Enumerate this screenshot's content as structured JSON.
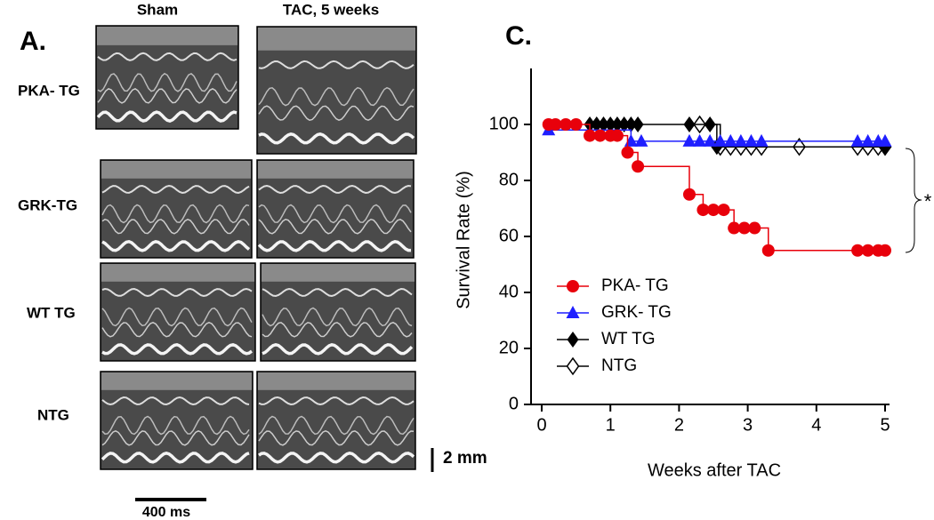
{
  "panel_a": {
    "label": "A.",
    "columns": [
      "Sham",
      "TAC, 5 weeks"
    ],
    "rows": [
      "PKA- TG",
      "GRK-TG",
      "WT TG",
      "NTG"
    ],
    "time_scale": "400 ms",
    "distance_scale": "2 mm"
  },
  "chart_data": {
    "type": "survival",
    "panel_label": "C.",
    "x_label": "Weeks after TAC",
    "y_label": "Survival Rate (%)",
    "annotation": "*",
    "xlim": [
      0,
      5
    ],
    "xticks": [
      0,
      1,
      2,
      3,
      4,
      5
    ],
    "ylim": [
      0,
      120
    ],
    "yticks": [
      0,
      20,
      40,
      60,
      80,
      100
    ],
    "series": [
      {
        "name": "PKA- TG",
        "color": "#e8000b",
        "marker": "circle",
        "x": [
          0.1,
          0.2,
          0.35,
          0.5,
          0.7,
          0.85,
          1.0,
          1.1,
          1.25,
          1.4,
          2.15,
          2.35,
          2.5,
          2.65,
          2.8,
          2.95,
          3.1,
          3.3,
          4.6,
          4.75,
          4.9,
          5.0
        ],
        "values": [
          100,
          100,
          100,
          100,
          96,
          96,
          96,
          96,
          90,
          85,
          75,
          69.5,
          69.5,
          69.5,
          63,
          63,
          63,
          55,
          55,
          55,
          55,
          55
        ]
      },
      {
        "name": "GRK- TG",
        "color": "#1f1fff",
        "marker": "triangle",
        "x": [
          0.1,
          1.3,
          1.45,
          2.15,
          2.3,
          2.45,
          2.6,
          2.75,
          2.9,
          3.05,
          3.2,
          4.6,
          4.75,
          4.9,
          5.0
        ],
        "values": [
          98,
          94,
          94,
          94,
          94,
          94,
          94,
          94,
          94,
          94,
          94,
          94,
          94,
          94,
          94
        ]
      },
      {
        "name": "WT TG",
        "color": "#000000",
        "marker": "diamond",
        "x": [
          0.7,
          0.8,
          0.9,
          1.0,
          1.1,
          1.2,
          1.3,
          1.4,
          2.15,
          2.45,
          2.55,
          5.0
        ],
        "values": [
          100,
          100,
          100,
          100,
          100,
          100,
          100,
          100,
          100,
          100,
          92,
          92
        ]
      },
      {
        "name": "NTG",
        "color": "#000000",
        "marker": "diamond-open",
        "x": [
          2.3,
          2.6,
          2.75,
          2.9,
          3.05,
          3.2,
          3.75,
          4.6,
          4.75,
          4.9,
          5.0
        ],
        "values": [
          100,
          92,
          92,
          92,
          92,
          92,
          92,
          92,
          92,
          92,
          92
        ]
      }
    ]
  }
}
